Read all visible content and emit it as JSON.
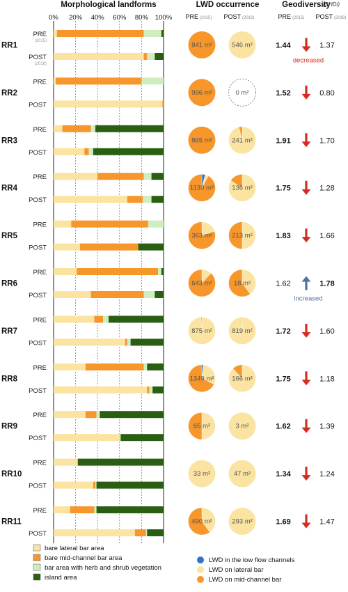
{
  "chart_data": {
    "type": "bar",
    "headers": {
      "landforms": "Morphological landforms",
      "lwd": "LWD occurrence",
      "geodiversity": "Geodiversity",
      "geodiversity_unit": "(SHDi)"
    },
    "period_labels": {
      "pre": "PRE",
      "post": "POST",
      "pre_year": "(2015)",
      "post_year": "(2018)"
    },
    "x_ticks": [
      "0%",
      "20%",
      "40%",
      "60%",
      "80%",
      "100%"
    ],
    "x_tick_values": [
      0,
      20,
      40,
      60,
      80,
      100
    ],
    "annotations": {
      "decreased": "decreased",
      "increased": "increased"
    },
    "area_unit": "m²",
    "landform_categories": [
      "bare lateral bar area",
      "bare mid-channel bar area",
      "bar area with herb and shrub vegetation",
      "island area"
    ],
    "lwd_categories": [
      "LWD in the low flow channels",
      "LWD on lateral bar",
      "LWD on mid-channel bar"
    ],
    "colors": {
      "lateral": "#fbe3a1",
      "midchannel": "#f6962b",
      "vegetation": "#cfeebf",
      "island": "#2a5e12",
      "lwd_lowflow": "#3474c0",
      "lwd_lateral": "#fbe3a1",
      "lwd_mid": "#f6962b",
      "arrow_down": "#d42d1e",
      "arrow_up": "#54709c"
    },
    "reaches": [
      {
        "id": "RR1",
        "pre": {
          "landforms": [
            3,
            79,
            16,
            2
          ],
          "lwd_area": 841,
          "lwd": [
            0,
            0,
            100
          ],
          "shdi": 1.44
        },
        "post": {
          "landforms": [
            82,
            3,
            7,
            8
          ],
          "lwd_area": 546,
          "lwd": [
            0,
            100,
            0
          ],
          "shdi": 1.37
        },
        "trend": "down",
        "note": "decreased"
      },
      {
        "id": "RR2",
        "pre": {
          "landforms": [
            2,
            78,
            20,
            0
          ],
          "lwd_area": 996,
          "lwd": [
            0,
            0,
            100
          ],
          "shdi": 1.52
        },
        "post": {
          "landforms": [
            99,
            1,
            0,
            0
          ],
          "lwd_area": 0,
          "lwd": [
            0,
            0,
            0
          ],
          "shdi": 0.8
        },
        "trend": "down"
      },
      {
        "id": "RR3",
        "pre": {
          "landforms": [
            8,
            26,
            4,
            62
          ],
          "lwd_area": 865,
          "lwd": [
            0,
            0,
            100
          ],
          "shdi": 1.91
        },
        "post": {
          "landforms": [
            28,
            4,
            4,
            64
          ],
          "lwd_area": 241,
          "lwd": [
            0,
            96,
            4
          ],
          "shdi": 1.7
        },
        "trend": "down"
      },
      {
        "id": "RR4",
        "pre": {
          "landforms": [
            40,
            42,
            7,
            11
          ],
          "lwd_area": 1139,
          "lwd": [
            4,
            4,
            92
          ],
          "shdi": 1.75
        },
        "post": {
          "landforms": [
            67,
            14,
            8,
            11
          ],
          "lwd_area": 136,
          "lwd": [
            0,
            84,
            16
          ],
          "shdi": 1.28
        },
        "trend": "down"
      },
      {
        "id": "RR5",
        "pre": {
          "landforms": [
            16,
            70,
            14,
            0
          ],
          "lwd_area": 363,
          "lwd": [
            0,
            20,
            80
          ],
          "shdi": 1.83
        },
        "post": {
          "landforms": [
            24,
            53,
            0,
            23
          ],
          "lwd_area": 213,
          "lwd": [
            0,
            50,
            50
          ],
          "shdi": 1.66
        },
        "trend": "down"
      },
      {
        "id": "RR6",
        "pre": {
          "landforms": [
            21,
            74,
            3,
            2
          ],
          "lwd_area": 643,
          "lwd": [
            0,
            12,
            88
          ],
          "shdi": 1.62
        },
        "post": {
          "landforms": [
            34,
            48,
            10,
            8
          ],
          "lwd_area": 18,
          "lwd": [
            0,
            40,
            60
          ],
          "shdi": 1.78
        },
        "trend": "up",
        "note": "increased"
      },
      {
        "id": "RR7",
        "pre": {
          "landforms": [
            37,
            8,
            5,
            50
          ],
          "lwd_area": 875,
          "lwd": [
            0,
            99,
            1
          ],
          "shdi": 1.72
        },
        "post": {
          "landforms": [
            65,
            2,
            3,
            30
          ],
          "lwd_area": 819,
          "lwd": [
            0,
            99,
            1
          ],
          "shdi": 1.6
        },
        "trend": "down"
      },
      {
        "id": "RR8",
        "pre": {
          "landforms": [
            29,
            53,
            3,
            15
          ],
          "lwd_area": 1349,
          "lwd": [
            2,
            30,
            68
          ],
          "shdi": 1.75
        },
        "post": {
          "landforms": [
            85,
            2,
            3,
            10
          ],
          "lwd_area": 166,
          "lwd": [
            0,
            88,
            12
          ],
          "shdi": 1.18
        },
        "trend": "down"
      },
      {
        "id": "RR9",
        "pre": {
          "landforms": [
            29,
            10,
            3,
            58
          ],
          "lwd_area": 65,
          "lwd": [
            0,
            50,
            50
          ],
          "shdi": 1.62
        },
        "post": {
          "landforms": [
            60,
            0,
            1,
            39
          ],
          "lwd_area": 3,
          "lwd": [
            0,
            100,
            0
          ],
          "shdi": 1.39
        },
        "trend": "down"
      },
      {
        "id": "RR10",
        "pre": {
          "landforms": [
            22,
            0,
            0,
            78
          ],
          "lwd_area": 33,
          "lwd": [
            0,
            100,
            0
          ],
          "shdi": 1.34
        },
        "post": {
          "landforms": [
            36,
            2,
            1,
            61
          ],
          "lwd_area": 47,
          "lwd": [
            0,
            100,
            0
          ],
          "shdi": 1.24
        },
        "trend": "down"
      },
      {
        "id": "RR11",
        "pre": {
          "landforms": [
            15,
            22,
            2,
            61
          ],
          "lwd_area": 490,
          "lwd": [
            0,
            40,
            60
          ],
          "shdi": 1.69
        },
        "post": {
          "landforms": [
            74,
            10,
            1,
            15
          ],
          "lwd_area": 293,
          "lwd": [
            0,
            100,
            0
          ],
          "shdi": 1.47
        },
        "trend": "down"
      }
    ]
  }
}
